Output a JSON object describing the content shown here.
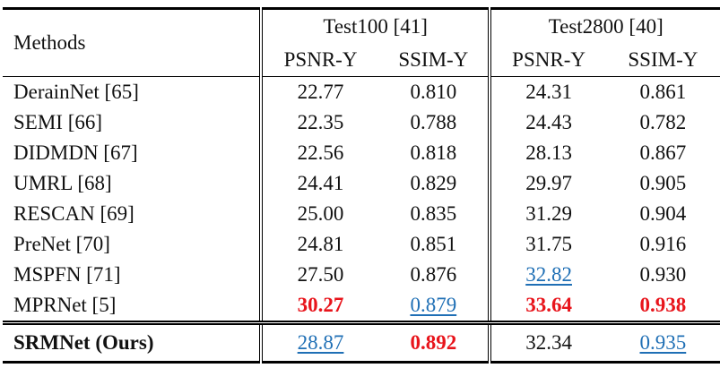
{
  "header": {
    "methods": "Methods",
    "groups": [
      "Test100 [41]",
      "Test2800 [40]"
    ],
    "metrics": [
      "PSNR-Y",
      "SSIM-Y",
      "PSNR-Y",
      "SSIM-Y"
    ]
  },
  "table": {
    "rows": [
      [
        "DerainNet [65]",
        "22.77",
        "0.810",
        "24.31",
        "0.861"
      ],
      [
        "SEMI [66]",
        "22.35",
        "0.788",
        "24.43",
        "0.782"
      ],
      [
        "DIDMDN [67]",
        "22.56",
        "0.818",
        "28.13",
        "0.867"
      ],
      [
        "UMRL [68]",
        "24.41",
        "0.829",
        "29.97",
        "0.905"
      ],
      [
        "RESCAN [69]",
        "25.00",
        "0.835",
        "31.29",
        "0.904"
      ],
      [
        "PreNet [70]",
        "24.81",
        "0.851",
        "31.75",
        "0.916"
      ],
      [
        "MSPFN [71]",
        "27.50",
        "0.876",
        "32.82",
        "0.930"
      ],
      [
        "MPRNet [5]",
        "30.27",
        "0.879",
        "33.64",
        "0.938"
      ],
      [
        "SRMNet (Ours)",
        "28.87",
        "0.892",
        "32.34",
        "0.935"
      ]
    ]
  }
}
